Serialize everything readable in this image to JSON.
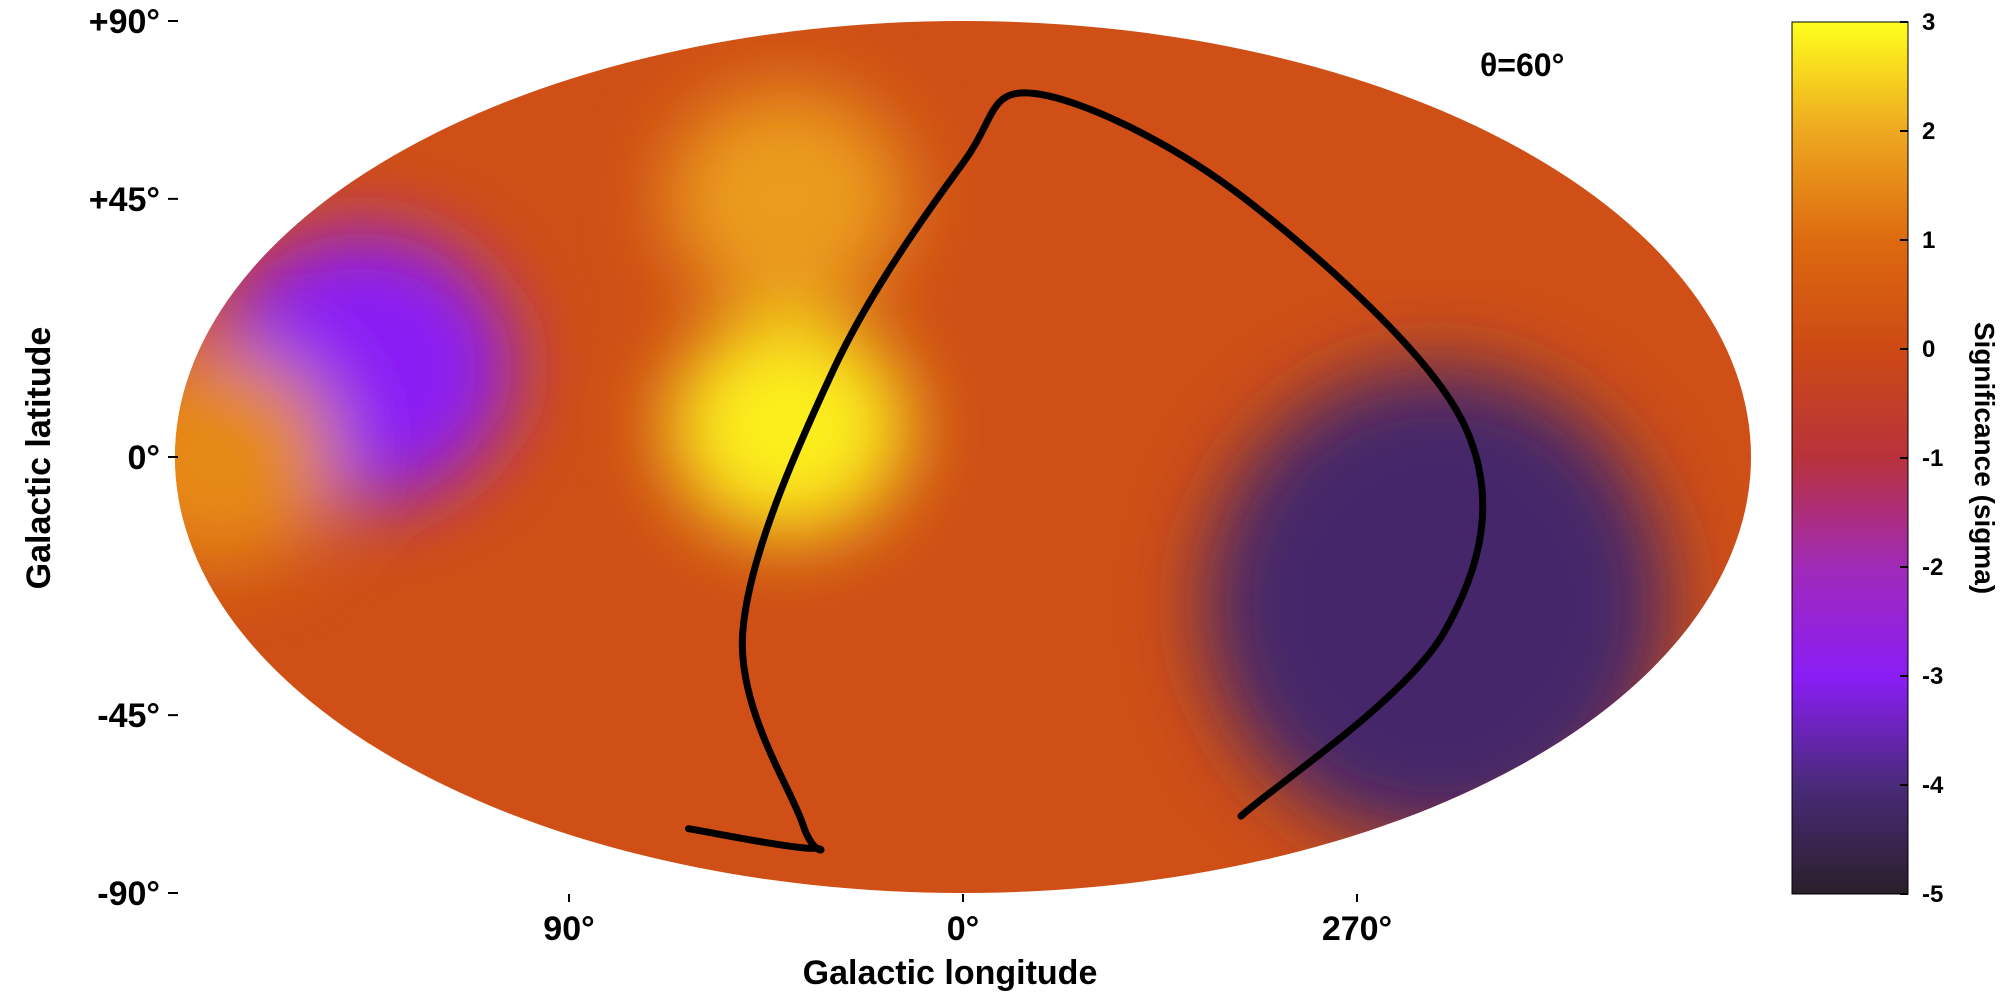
{
  "chart_data": {
    "type": "heatmap",
    "projection": "mollweide",
    "title": "",
    "annotation": "θ=60°",
    "xlabel": "Galactic longitude",
    "ylabel": "Galactic latitude",
    "x_ticks": [
      "90°",
      "0°",
      "270°"
    ],
    "x_tick_values": [
      90,
      0,
      270
    ],
    "y_ticks": [
      "+90°",
      "+45°",
      "0°",
      "-45°",
      "-90°"
    ],
    "y_tick_values": [
      90,
      45,
      0,
      -45,
      -90
    ],
    "colorbar": {
      "label": "Significance (sigma)",
      "range": [
        -5,
        3
      ],
      "ticks": [
        "3",
        "2",
        "1",
        "0",
        "-1",
        "-2",
        "-3",
        "-4",
        "-5"
      ],
      "tick_values": [
        3,
        2,
        1,
        0,
        -1,
        -2,
        -3,
        -4,
        -5
      ],
      "colors": [
        "#2a1f2a",
        "#4a2a7a",
        "#8a1df5",
        "#a02ab8",
        "#b8323c",
        "#cd4a14",
        "#dd6a10",
        "#eea820",
        "#ffff1e"
      ]
    },
    "features": [
      {
        "type": "deficit",
        "l": 245,
        "b": -25,
        "sigma": -4.2
      },
      {
        "type": "deficit",
        "l": 140,
        "b": 15,
        "sigma": -3.0
      },
      {
        "type": "excess",
        "l": 40,
        "b": 5,
        "sigma": 2.8
      },
      {
        "type": "excess",
        "l": 50,
        "b": 45,
        "sigma": 1.8
      },
      {
        "type": "excess",
        "l": 170,
        "b": 0,
        "sigma": 1.5
      }
    ],
    "fov_boundary": {
      "label": "θ=60°",
      "points": [
        [
          120,
          -69
        ],
        [
          78,
          -74
        ],
        [
          68,
          -68
        ],
        [
          55,
          -30
        ],
        [
          30,
          15
        ],
        [
          0,
          52
        ],
        [
          -30,
          67
        ],
        [
          -80,
          45
        ],
        [
          -115,
          5
        ],
        [
          -120,
          -30
        ],
        [
          -112,
          -66
        ]
      ]
    },
    "grid": false
  }
}
